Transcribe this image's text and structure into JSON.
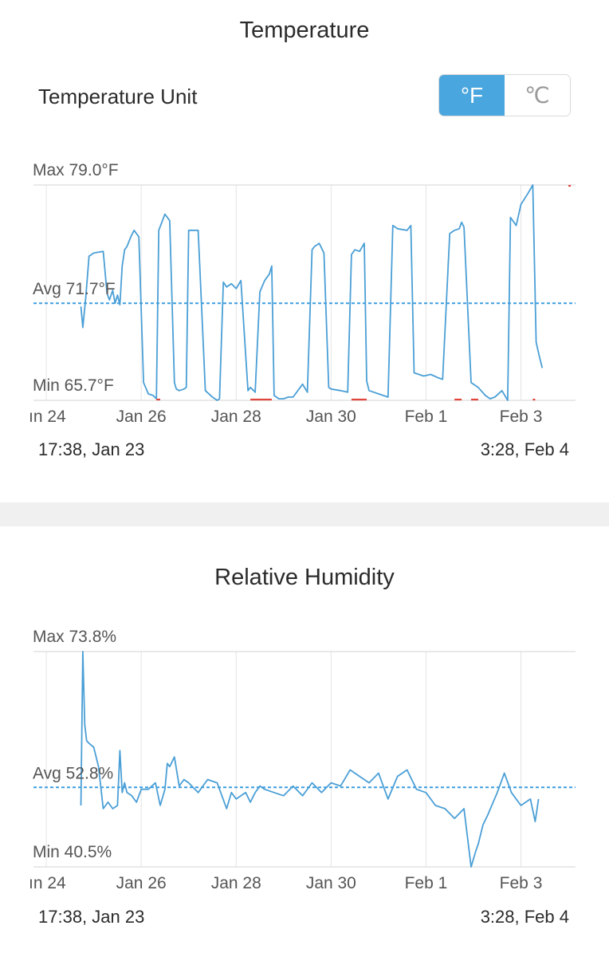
{
  "temperature": {
    "title": "Temperature",
    "unit_label": "Temperature Unit",
    "unit_options": [
      "°F",
      "℃"
    ],
    "selected_unit": "°F",
    "range_start": "17:38,  Jan 23",
    "range_end": "3:28,  Feb 4"
  },
  "humidity": {
    "title": "Relative Humidity",
    "range_start": "17:38,  Jan 23",
    "range_end": "3:28,  Feb 4"
  },
  "colors": {
    "line": "#4a9fd6",
    "min_highlight": "#e0463c",
    "max_highlight": "#e0463c",
    "accent": "#4aa6de",
    "grid": "#e4e4e4",
    "avg_line": "#3c9ee0"
  },
  "chart_data": [
    {
      "type": "line",
      "title": "Temperature",
      "x_tick_labels": [
        "ın 24",
        "Jan 26",
        "Jan 28",
        "Jan 30",
        "Feb 1",
        "Feb 3"
      ],
      "x_tick_days": [
        24,
        26,
        28,
        30,
        32,
        34
      ],
      "xlim_days": [
        23.73,
        35.15
      ],
      "ylim": [
        65.7,
        79.0
      ],
      "max_label": "Max 79.0°F",
      "avg_label": "Avg 71.7°F",
      "min_label": "Min 65.7°F",
      "max": 79.0,
      "avg": 71.7,
      "min": 65.7,
      "x_days": [
        24.73,
        24.77,
        24.83,
        24.9,
        25.0,
        25.2,
        25.28,
        25.33,
        25.4,
        25.45,
        25.5,
        25.55,
        25.6,
        25.65,
        25.7,
        25.78,
        25.85,
        25.95,
        26.05,
        26.15,
        26.25,
        26.32,
        26.37,
        26.5,
        26.6,
        26.7,
        26.74,
        26.8,
        26.9,
        26.95,
        27.0,
        27.1,
        27.2,
        27.35,
        27.5,
        27.6,
        27.65,
        27.73,
        27.8,
        27.9,
        28.0,
        28.1,
        28.25,
        28.3,
        28.37,
        28.4,
        28.5,
        28.6,
        28.7,
        28.75,
        28.8,
        28.9,
        29.0,
        29.1,
        29.2,
        29.4,
        29.5,
        29.6,
        29.65,
        29.75,
        29.85,
        29.95,
        30.0,
        30.2,
        30.35,
        30.43,
        30.5,
        30.6,
        30.7,
        30.75,
        30.8,
        30.9,
        31.0,
        31.2,
        31.3,
        31.4,
        31.6,
        31.68,
        31.75,
        31.85,
        31.95,
        32.1,
        32.25,
        32.35,
        32.5,
        32.6,
        32.7,
        32.75,
        32.8,
        32.95,
        33.1,
        33.25,
        33.35,
        33.45,
        33.6,
        33.72,
        33.78,
        33.9,
        34.0,
        34.15,
        34.25,
        34.32,
        34.38,
        34.45
      ],
      "values": [
        71.5,
        70.2,
        72.0,
        74.6,
        74.8,
        74.9,
        72.3,
        71.9,
        72.5,
        71.7,
        72.2,
        71.6,
        74.0,
        75.0,
        75.2,
        75.8,
        76.2,
        75.8,
        66.8,
        66.1,
        66.0,
        65.8,
        76.2,
        77.2,
        76.8,
        66.8,
        66.4,
        66.3,
        66.4,
        66.5,
        76.2,
        76.2,
        76.2,
        66.3,
        65.9,
        65.7,
        65.8,
        73.0,
        72.7,
        72.9,
        72.6,
        73.1,
        66.3,
        66.5,
        66.3,
        66.2,
        72.4,
        73.1,
        73.5,
        74.0,
        66.0,
        65.8,
        65.8,
        65.9,
        65.9,
        66.7,
        66.2,
        75.0,
        75.2,
        75.4,
        74.8,
        66.5,
        66.4,
        66.3,
        66.2,
        74.7,
        75.0,
        74.9,
        75.4,
        66.9,
        66.3,
        66.2,
        66.1,
        65.9,
        76.5,
        76.3,
        76.2,
        76.5,
        67.4,
        67.3,
        67.2,
        67.3,
        67.1,
        67.0,
        76.0,
        76.2,
        76.3,
        76.7,
        76.4,
        66.8,
        66.5,
        66.0,
        65.8,
        65.9,
        66.3,
        65.7,
        77.0,
        76.5,
        77.8,
        78.5,
        79.0,
        69.3,
        68.5,
        67.7
      ],
      "min_segments_days": [
        [
          26.32,
          26.4
        ],
        [
          28.3,
          28.75
        ],
        [
          30.43,
          30.75
        ],
        [
          32.6,
          32.75
        ],
        [
          32.95,
          33.1
        ],
        [
          34.25,
          34.3
        ]
      ],
      "max_segments_days": [
        [
          35.0,
          35.05
        ]
      ]
    },
    {
      "type": "line",
      "title": "Relative Humidity",
      "x_tick_labels": [
        "ın 24",
        "Jan 26",
        "Jan 28",
        "Jan 30",
        "Feb 1",
        "Feb 3"
      ],
      "x_tick_days": [
        24,
        26,
        28,
        30,
        32,
        34
      ],
      "xlim_days": [
        23.73,
        35.15
      ],
      "ylim": [
        40.5,
        73.8
      ],
      "max_label": "Max 73.8%",
      "avg_label": "Avg 52.8%",
      "min_label": "Min 40.5%",
      "max": 73.8,
      "avg": 52.8,
      "min": 40.5,
      "x_days": [
        24.73,
        24.77,
        24.81,
        24.85,
        24.9,
        25.0,
        25.1,
        25.2,
        25.3,
        25.4,
        25.5,
        25.55,
        25.6,
        25.65,
        25.7,
        25.8,
        25.9,
        26.0,
        26.15,
        26.3,
        26.4,
        26.5,
        26.55,
        26.6,
        26.7,
        26.8,
        26.9,
        27.0,
        27.2,
        27.4,
        27.6,
        27.8,
        27.9,
        28.0,
        28.2,
        28.3,
        28.4,
        28.5,
        28.6,
        28.8,
        29.0,
        29.2,
        29.4,
        29.6,
        29.8,
        30.0,
        30.2,
        30.4,
        30.6,
        30.8,
        31.0,
        31.2,
        31.4,
        31.6,
        31.8,
        32.0,
        32.2,
        32.4,
        32.6,
        32.8,
        32.95,
        33.05,
        33.1,
        33.2,
        33.3,
        33.5,
        33.65,
        33.8,
        34.0,
        34.2,
        34.3,
        34.37
      ],
      "values": [
        50.0,
        73.8,
        62.5,
        60.0,
        59.6,
        59.0,
        56.0,
        49.5,
        50.5,
        49.5,
        50.0,
        58.5,
        52.0,
        53.5,
        52.0,
        51.5,
        50.5,
        52.5,
        52.5,
        53.5,
        50.0,
        52.5,
        56.5,
        56.0,
        57.5,
        53.0,
        54.0,
        53.5,
        52.0,
        54.0,
        53.5,
        49.5,
        52.0,
        51.0,
        52.0,
        50.5,
        52.0,
        53.0,
        52.5,
        52.0,
        51.5,
        53.0,
        51.5,
        53.5,
        52.0,
        53.5,
        53.0,
        55.5,
        54.5,
        53.5,
        55.0,
        51.0,
        54.5,
        55.5,
        52.5,
        52.0,
        50.0,
        49.5,
        48.0,
        49.5,
        40.5,
        43.0,
        44.0,
        47.0,
        48.5,
        52.0,
        55.0,
        52.0,
        50.0,
        51.0,
        47.5,
        51.0
      ],
      "min_segments_days": [],
      "max_segments_days": []
    }
  ]
}
